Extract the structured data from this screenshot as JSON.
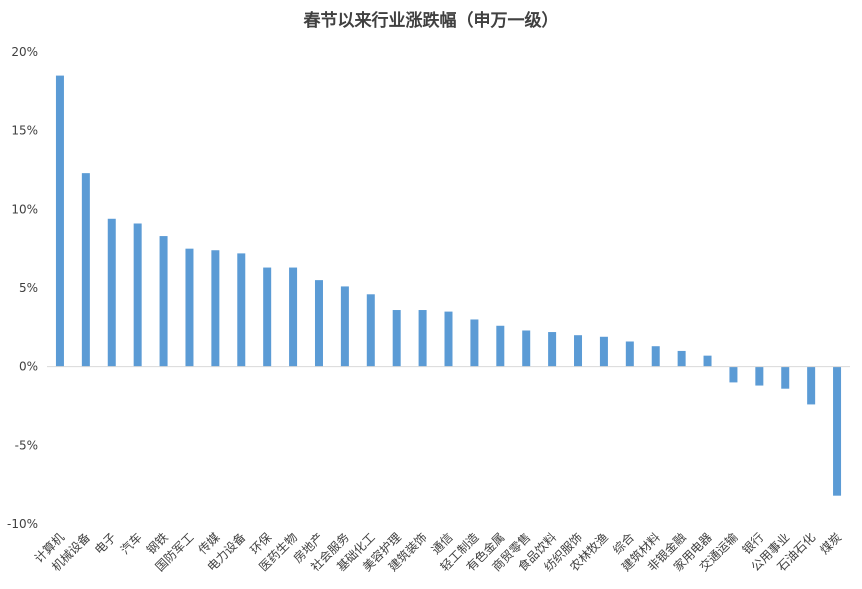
{
  "chart_data": {
    "type": "bar",
    "title": "春节以来行业涨跌幅（申万一级）",
    "xlabel": "",
    "ylabel": "",
    "ylim": [
      -10,
      20
    ],
    "yticks": [
      20,
      15,
      10,
      5,
      0,
      -5,
      -10
    ],
    "ytick_labels": [
      "20%",
      "15%",
      "10%",
      "5%",
      "0%",
      "-5%",
      "-10%"
    ],
    "grid": false,
    "legend": "none",
    "bar_color": "#5B9BD5",
    "categories": [
      "计算机",
      "机械设备",
      "电子",
      "汽车",
      "钢铁",
      "国防军工",
      "传媒",
      "电力设备",
      "环保",
      "医药生物",
      "房地产",
      "社会服务",
      "基础化工",
      "美容护理",
      "建筑装饰",
      "通信",
      "轻工制造",
      "有色金属",
      "商贸零售",
      "食品饮料",
      "纺织服饰",
      "农林牧渔",
      "综合",
      "建筑材料",
      "非银金融",
      "家用电器",
      "交通运输",
      "银行",
      "公用事业",
      "石油石化",
      "煤炭"
    ],
    "values": [
      18.5,
      12.3,
      9.4,
      9.1,
      8.3,
      7.5,
      7.4,
      7.2,
      6.3,
      6.3,
      5.5,
      5.1,
      4.6,
      3.6,
      3.6,
      3.5,
      3.0,
      2.6,
      2.3,
      2.2,
      2.0,
      1.9,
      1.6,
      1.3,
      1.0,
      0.7,
      -1.0,
      -1.2,
      -1.4,
      -2.4,
      -8.2
    ]
  }
}
